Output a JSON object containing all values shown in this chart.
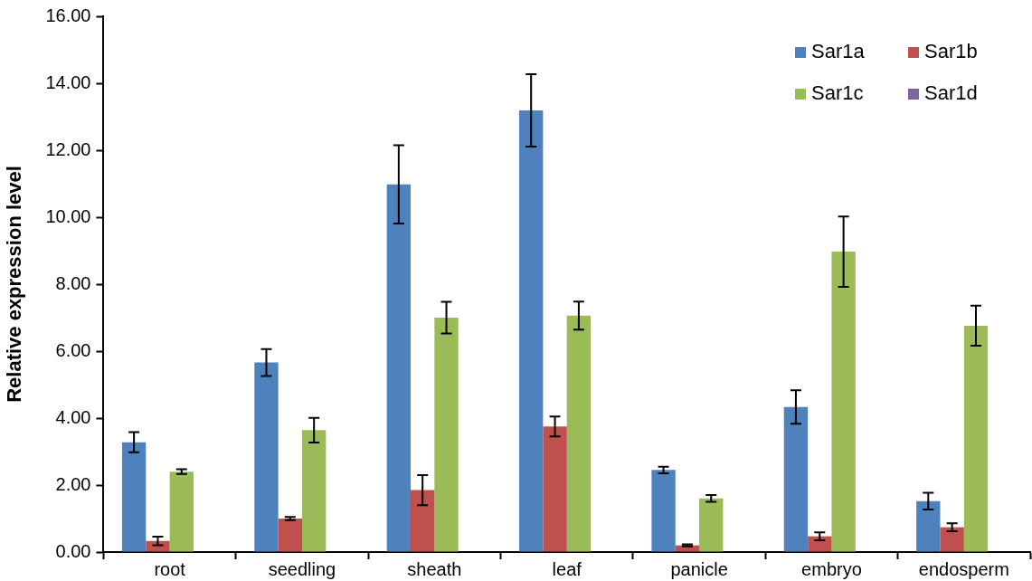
{
  "chart_data": {
    "type": "bar",
    "ylabel": "Relative expression level",
    "categories": [
      "root",
      "seedling",
      "sheath",
      "leaf",
      "panicle",
      "embryo",
      "endosperm"
    ],
    "series": [
      {
        "name": "Sar1a",
        "color": "#4f81bd",
        "values": [
          3.28,
          5.66,
          10.98,
          13.19,
          2.45,
          4.33,
          1.52
        ],
        "errors": [
          0.3,
          0.4,
          1.17,
          1.08,
          0.1,
          0.5,
          0.25
        ]
      },
      {
        "name": "Sar1b",
        "color": "#c0504d",
        "values": [
          0.33,
          1.0,
          1.85,
          3.75,
          0.2,
          0.47,
          0.74
        ],
        "errors": [
          0.13,
          0.05,
          0.45,
          0.3,
          0.03,
          0.12,
          0.12
        ]
      },
      {
        "name": "Sar1c",
        "color": "#9bbb59",
        "values": [
          2.4,
          3.64,
          7.0,
          7.06,
          1.6,
          8.97,
          6.76
        ],
        "errors": [
          0.07,
          0.37,
          0.47,
          0.42,
          0.1,
          1.05,
          0.6
        ]
      },
      {
        "name": "Sar1d",
        "color": "#8064a2",
        "values": [
          0.0,
          0.0,
          null,
          null,
          0.0,
          0.0,
          0.0
        ],
        "errors": [
          null,
          null,
          null,
          null,
          null,
          null,
          null
        ]
      }
    ],
    "ylim": [
      0,
      16
    ],
    "yticks": [
      {
        "value": 0,
        "label": "0.00"
      },
      {
        "value": 2,
        "label": "2.00"
      },
      {
        "value": 4,
        "label": "4.00"
      },
      {
        "value": 6,
        "label": "6.00"
      },
      {
        "value": 8,
        "label": "8.00"
      },
      {
        "value": 10,
        "label": "10.00"
      },
      {
        "value": 12,
        "label": "12.00"
      },
      {
        "value": 14,
        "label": "14.00"
      },
      {
        "value": 16,
        "label": "16.00"
      }
    ],
    "grid": false,
    "legend": "top right"
  }
}
